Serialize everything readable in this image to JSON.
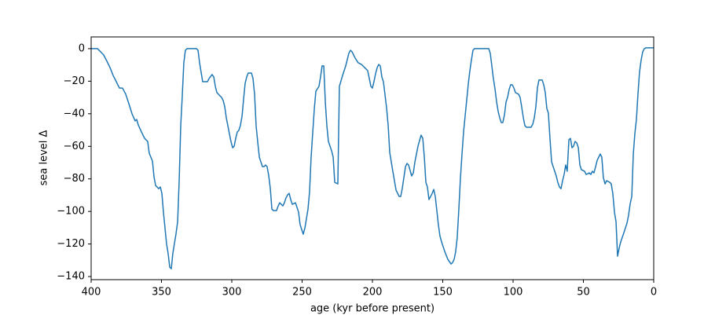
{
  "chart_data": {
    "type": "line",
    "xlabel": "age (kyr before present)",
    "ylabel": "sea level Δ",
    "xlim": [
      400,
      0
    ],
    "ylim": [
      -141.9,
      7.2
    ],
    "xticks": [
      400,
      350,
      300,
      250,
      200,
      150,
      100,
      50,
      0
    ],
    "yticks": [
      0,
      {
        "value": -20,
        "label": "−20"
      },
      {
        "value": -40,
        "label": "−40"
      },
      {
        "value": -60,
        "label": "−60"
      },
      {
        "value": -80,
        "label": "−80"
      },
      {
        "value": -100,
        "label": "−100"
      },
      {
        "value": -120,
        "label": "−120"
      },
      {
        "value": -140,
        "label": "−140"
      }
    ],
    "grid": false,
    "x": [
      400,
      395.5,
      393.3,
      391.1,
      388.8,
      386.6,
      384.4,
      382.1,
      379.9,
      377.7,
      375.4,
      373.2,
      370.9,
      368.7,
      367.6,
      366.5,
      364.2,
      362,
      359.8,
      358.7,
      356.4,
      355.3,
      354.2,
      352,
      350.8,
      349.7,
      348.6,
      347.5,
      346.4,
      345.3,
      344.1,
      343,
      341.9,
      339.7,
      338.5,
      337.4,
      336.3,
      335.2,
      334.1,
      333,
      331.8,
      325.1,
      324,
      322.9,
      321.8,
      320.7,
      317.3,
      316.2,
      314,
      312.8,
      311.7,
      310.6,
      308.4,
      307.3,
      306.1,
      305,
      303.9,
      302.8,
      301.7,
      300.6,
      299.4,
      298.3,
      297.2,
      296.1,
      295,
      293.9,
      292.7,
      291.6,
      290.5,
      289.4,
      288.3,
      286,
      284.9,
      283.8,
      282.7,
      281.6,
      280.4,
      279.3,
      278.2,
      277.1,
      276,
      274.9,
      273.7,
      272.6,
      271.5,
      270.4,
      268.2,
      267,
      265.9,
      263.7,
      262.6,
      261.5,
      260.3,
      259.2,
      258.1,
      257,
      254.7,
      253.6,
      252.5,
      251.4,
      250.3,
      249.2,
      248,
      246.9,
      245.8,
      244.7,
      243.6,
      242.5,
      241.3,
      240.2,
      238,
      236.9,
      235.8,
      234.6,
      233.5,
      232.4,
      231.3,
      229,
      227.9,
      226.8,
      224.6,
      223.5,
      221.2,
      219,
      216.8,
      215.6,
      214.5,
      212.3,
      210.1,
      207.8,
      205.6,
      203.4,
      202.2,
      201.1,
      200,
      198.9,
      197.8,
      196.6,
      195.5,
      194.4,
      193.3,
      192.2,
      191.1,
      189.9,
      188.8,
      187.7,
      185.5,
      183.2,
      181,
      179.9,
      178.8,
      176.5,
      175.4,
      174.3,
      172.1,
      170.9,
      169.8,
      167.6,
      165.4,
      164.2,
      163.1,
      162,
      160.9,
      159.8,
      157.5,
      156.4,
      155.3,
      154.2,
      153.1,
      152,
      150.8,
      148.6,
      146.4,
      144.1,
      143,
      141.9,
      140.8,
      139.7,
      138.5,
      137.4,
      136.3,
      135.2,
      134.1,
      133,
      131.8,
      130.7,
      129.6,
      128.5,
      127.4,
      117.3,
      116.2,
      115.1,
      114,
      112.8,
      111.7,
      110.6,
      109.5,
      108.4,
      107.3,
      106.1,
      105,
      103.9,
      102.8,
      101.7,
      100.6,
      99.4,
      98.3,
      96.1,
      95,
      93.9,
      92.7,
      91.6,
      90.5,
      87.2,
      86,
      84.9,
      83.8,
      82.7,
      81.6,
      79.3,
      78.2,
      77.1,
      76,
      74.9,
      73.7,
      72.6,
      71.5,
      69.3,
      68.2,
      67,
      65.9,
      64.8,
      63.7,
      62.6,
      61.5,
      60.3,
      59.2,
      58.1,
      57,
      55.9,
      54.7,
      53.6,
      52.5,
      51.4,
      49.2,
      48,
      45.8,
      44.7,
      43.6,
      42.5,
      41.3,
      40.2,
      38,
      36.9,
      35.8,
      34.6,
      33.5,
      31.3,
      30.2,
      29.1,
      27.9,
      26.8,
      25.7,
      24.6,
      23.5,
      21.2,
      19,
      17.9,
      16.8,
      15.6,
      14.5,
      13.4,
      12.3,
      11.2,
      10.1,
      8.9,
      7.8,
      6.7,
      5.6,
      0
    ],
    "series": [
      {
        "color": "#1f77b4",
        "values": [
          0,
          0,
          -1.9,
          -3.9,
          -7.7,
          -11.6,
          -16.4,
          -20.3,
          -24.2,
          -24.2,
          -28,
          -33.8,
          -40.1,
          -44.4,
          -43.5,
          -46.9,
          -51.2,
          -55.1,
          -57,
          -64.2,
          -69.1,
          -78.7,
          -84,
          -86,
          -85,
          -88.9,
          -100.5,
          -110.1,
          -119.8,
          -125.6,
          -134.3,
          -135.2,
          -125.6,
          -114,
          -106.3,
          -81.1,
          -47.3,
          -29,
          -8.7,
          -1,
          0,
          0,
          -1,
          -8.7,
          -14.5,
          -20.3,
          -20.3,
          -18.4,
          -15.9,
          -17.4,
          -23.2,
          -27,
          -29,
          -29.9,
          -31.9,
          -35.7,
          -42.5,
          -47.3,
          -52.2,
          -57,
          -60.9,
          -59.9,
          -55.1,
          -51.2,
          -50.2,
          -47.3,
          -41.5,
          -30.9,
          -21.3,
          -17.4,
          -15,
          -15,
          -18.4,
          -28,
          -47.3,
          -57,
          -66.7,
          -69.6,
          -72.5,
          -72.5,
          -71.5,
          -72.5,
          -78.2,
          -86,
          -98.5,
          -99.5,
          -99.5,
          -96.6,
          -94.7,
          -96.6,
          -94.7,
          -91.8,
          -89.8,
          -88.9,
          -92.7,
          -95.6,
          -94.7,
          -97.6,
          -100.5,
          -108.2,
          -111.1,
          -114,
          -110.1,
          -104.3,
          -98.5,
          -87.9,
          -66.7,
          -52.2,
          -36.7,
          -26.1,
          -23.2,
          -17.4,
          -10.6,
          -10.6,
          -32.8,
          -47.3,
          -57,
          -62.8,
          -66.7,
          -82.1,
          -83.1,
          -23.2,
          -16.4,
          -10.6,
          -2.9,
          -1,
          -1.9,
          -5.8,
          -8.7,
          -9.7,
          -11.6,
          -13.5,
          -18.4,
          -23.2,
          -24.2,
          -20.3,
          -15.5,
          -11.6,
          -9.7,
          -10.6,
          -17.4,
          -20.3,
          -28,
          -36.7,
          -47.3,
          -63.8,
          -75.3,
          -86.9,
          -90.8,
          -90.8,
          -86,
          -72.5,
          -70.5,
          -71.5,
          -78.2,
          -76.3,
          -69.6,
          -59.9,
          -53.1,
          -55.1,
          -66.7,
          -82.1,
          -85,
          -92.7,
          -88.9,
          -86.5,
          -90.8,
          -99.5,
          -108.2,
          -115,
          -118.8,
          -124.6,
          -129.4,
          -132.3,
          -131.4,
          -129.4,
          -124.6,
          -115.9,
          -97.6,
          -79.2,
          -64.7,
          -51.2,
          -41.5,
          -31.9,
          -21.3,
          -13.5,
          -6.8,
          -1,
          0,
          0,
          -2.9,
          -10.6,
          -18.4,
          -25.1,
          -32.8,
          -38.6,
          -42.5,
          -45.4,
          -45.4,
          -40.6,
          -32.8,
          -29.9,
          -25.1,
          -22.2,
          -22.2,
          -24.2,
          -27,
          -28,
          -29.9,
          -35.7,
          -42.5,
          -47.3,
          -48.3,
          -48.3,
          -46.4,
          -42.5,
          -35.7,
          -24.2,
          -19.3,
          -19.3,
          -22.2,
          -27,
          -36.7,
          -39.6,
          -56,
          -69.6,
          -72.5,
          -78.2,
          -82.1,
          -85,
          -86,
          -81.1,
          -77.3,
          -71.5,
          -75.3,
          -56,
          -55.1,
          -60.9,
          -59.9,
          -57,
          -57.9,
          -60.9,
          -71.5,
          -74.4,
          -75.3,
          -77.3,
          -76.3,
          -77.3,
          -75.3,
          -76.3,
          -72.5,
          -68.6,
          -64.7,
          -66.7,
          -79.2,
          -83.1,
          -81.1,
          -82.1,
          -83.1,
          -88.9,
          -100.5,
          -106.3,
          -127.5,
          -122.7,
          -118.8,
          -113,
          -107.2,
          -102.4,
          -95.6,
          -90.8,
          -64.7,
          -52.2,
          -43.5,
          -28,
          -14.5,
          -6.8,
          -1.9,
          0,
          0.5,
          0.5
        ]
      }
    ]
  }
}
